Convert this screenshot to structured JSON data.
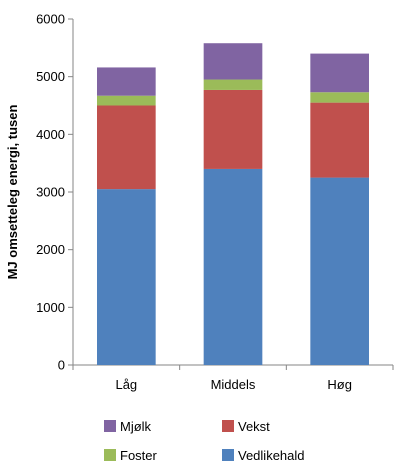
{
  "chart_data": {
    "type": "bar",
    "stacked": true,
    "categories": [
      "Låg",
      "Middels",
      "Høg"
    ],
    "series": [
      {
        "name": "Vedlikehald",
        "color": "#4f81bd",
        "values": [
          3050,
          3400,
          3250
        ]
      },
      {
        "name": "Vekst",
        "color": "#c0504d",
        "values": [
          1450,
          1370,
          1300
        ]
      },
      {
        "name": "Foster",
        "color": "#9bbb59",
        "values": [
          170,
          180,
          180
        ]
      },
      {
        "name": "Mjølk",
        "color": "#8064a2",
        "values": [
          490,
          630,
          670
        ]
      }
    ],
    "title": "",
    "xlabel": "",
    "ylabel": "MJ omsetteleg energi, tusen",
    "ylim": [
      0,
      6000
    ],
    "yticks": [
      0,
      1000,
      2000,
      3000,
      4000,
      5000,
      6000
    ],
    "grid": false,
    "legend": {
      "placement": "bottom",
      "order": [
        "Mjølk",
        "Vekst",
        "Foster",
        "Vedlikehald"
      ]
    }
  }
}
